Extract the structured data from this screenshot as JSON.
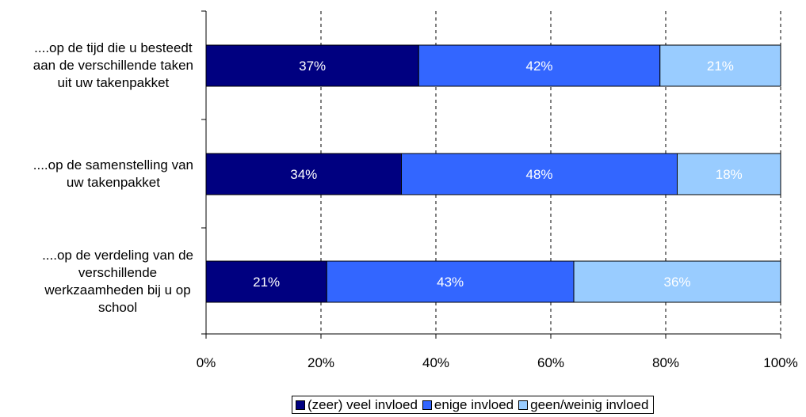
{
  "chart_data": {
    "type": "bar",
    "orientation": "horizontal",
    "stacked": true,
    "categories": [
      [
        "....op de tijd die u besteedt",
        "aan de verschillende taken",
        "uit uw takenpakket"
      ],
      [
        "....op de samenstelling van",
        "uw takenpakket"
      ],
      [
        "....op de verdeling van de",
        "verschillende",
        "werkzaamheden bij u op",
        "school"
      ]
    ],
    "series": [
      {
        "name": "(zeer) veel invloed",
        "values": [
          37,
          34,
          21
        ],
        "color": "#000080",
        "label_color": "#ffffff"
      },
      {
        "name": "enige invloed",
        "values": [
          42,
          48,
          43
        ],
        "color": "#3366ff",
        "label_color": "#ffffff"
      },
      {
        "name": "geen/weinig invloed",
        "values": [
          21,
          18,
          36
        ],
        "color": "#99ccff",
        "label_color": "#ffffff"
      }
    ],
    "data_labels": [
      [
        "37%",
        "34%",
        "21%"
      ],
      [
        "42%",
        "48%",
        "43%"
      ],
      [
        "21%",
        "18%",
        "36%"
      ]
    ],
    "xticks": [
      "0%",
      "20%",
      "40%",
      "60%",
      "80%",
      "100%"
    ],
    "xlim": [
      0,
      100
    ],
    "grid": "vertical-dashed",
    "legend": "bottom"
  }
}
